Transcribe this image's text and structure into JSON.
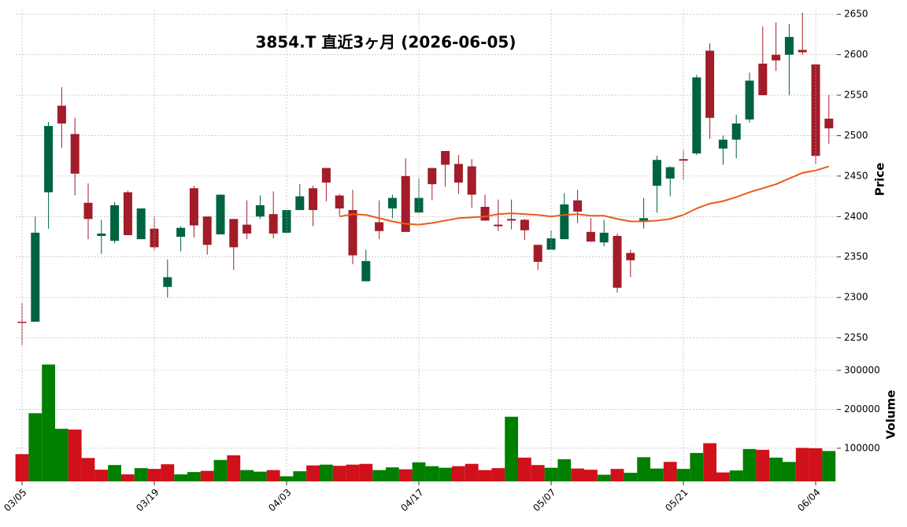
{
  "chart_data": [
    {
      "type": "candlestick",
      "title": "3854.T  直近3ヶ月  (2026-06-05)",
      "ylabel": "Price",
      "categories": [
        "03/05",
        null,
        null,
        null,
        null,
        null,
        null,
        null,
        null,
        null,
        "03/19",
        null,
        null,
        null,
        null,
        null,
        null,
        null,
        null,
        null,
        "04/03",
        null,
        null,
        null,
        null,
        null,
        null,
        null,
        null,
        null,
        "04/17",
        null,
        null,
        null,
        null,
        null,
        null,
        null,
        null,
        null,
        "05/07",
        null,
        null,
        null,
        null,
        null,
        null,
        null,
        null,
        null,
        "05/21",
        null,
        null,
        null,
        null,
        null,
        null,
        null,
        null,
        null,
        "06/04",
        null
      ],
      "open": [
        2270,
        2270,
        2430,
        2537,
        2502,
        2417,
        2376,
        2370,
        2430,
        2372,
        2385,
        2313,
        2375,
        2435,
        2400,
        2378,
        2397,
        2390,
        2400,
        2403,
        2380,
        2408,
        2435,
        2460,
        2426,
        2408,
        2320,
        2393,
        2410,
        2450,
        2405,
        2460,
        2481,
        2465,
        2462,
        2412,
        2390,
        2397,
        2396,
        2365,
        2359,
        2372,
        2420,
        2381,
        2368,
        2376,
        2355,
        2394,
        2438,
        2447,
        2471,
        2478,
        2605,
        2484,
        2495,
        2520,
        2589,
        2600,
        2600,
        2606,
        2588,
        2521
      ],
      "high": [
        2293,
        2400,
        2517,
        2560,
        2522,
        2441,
        2396,
        2418,
        2432,
        2410,
        2400,
        2347,
        2388,
        2438,
        2400,
        2427,
        2397,
        2420,
        2426,
        2431,
        2408,
        2440,
        2438,
        2460,
        2428,
        2433,
        2359,
        2420,
        2427,
        2472,
        2447,
        2460,
        2481,
        2476,
        2471,
        2427,
        2421,
        2421,
        2397,
        2365,
        2383,
        2429,
        2433,
        2398,
        2396,
        2379,
        2359,
        2423,
        2475,
        2462,
        2482,
        2575,
        2614,
        2500,
        2526,
        2578,
        2635,
        2640,
        2638,
        2652,
        2588,
        2550
      ],
      "low": [
        2241,
        2270,
        2385,
        2485,
        2426,
        2372,
        2354,
        2367,
        2377,
        2372,
        2358,
        2300,
        2357,
        2374,
        2353,
        2378,
        2334,
        2372,
        2397,
        2373,
        2380,
        2408,
        2388,
        2419,
        2401,
        2341,
        2320,
        2372,
        2398,
        2381,
        2404,
        2420,
        2437,
        2428,
        2411,
        2395,
        2382,
        2384,
        2371,
        2334,
        2359,
        2372,
        2392,
        2369,
        2363,
        2306,
        2325,
        2385,
        2405,
        2425,
        2446,
        2476,
        2496,
        2464,
        2472,
        2516,
        2550,
        2580,
        2550,
        2600,
        2465,
        2490
      ],
      "close": [
        2270,
        2380,
        2512,
        2515,
        2453,
        2397,
        2379,
        2414,
        2377,
        2410,
        2362,
        2325,
        2386,
        2389,
        2365,
        2427,
        2362,
        2379,
        2414,
        2379,
        2408,
        2425,
        2408,
        2442,
        2410,
        2352,
        2345,
        2382,
        2423,
        2381,
        2423,
        2440,
        2464,
        2442,
        2427,
        2395,
        2388,
        2395,
        2383,
        2344,
        2373,
        2415,
        2406,
        2369,
        2380,
        2312,
        2346,
        2398,
        2470,
        2461,
        2469,
        2572,
        2522,
        2495,
        2515,
        2568,
        2550,
        2593,
        2622,
        2603,
        2475,
        2509
      ],
      "up_color": "#006340",
      "down_color": "#a21c29",
      "ma": {
        "color": "#ea5b1b",
        "values": [
          null,
          null,
          null,
          null,
          null,
          null,
          null,
          null,
          null,
          null,
          null,
          null,
          null,
          null,
          null,
          null,
          null,
          null,
          null,
          null,
          null,
          null,
          null,
          null,
          2400,
          2403,
          2402,
          2398,
          2394,
          2391,
          2390,
          2392,
          2395,
          2398,
          2399,
          2400,
          2403,
          2404,
          2403,
          2402,
          2400,
          2402,
          2403,
          2401,
          2401,
          2397,
          2394,
          2394,
          2395,
          2397,
          2402,
          2410,
          2416,
          2419,
          2424,
          2430,
          2435,
          2440,
          2447,
          2454,
          2457,
          2462
        ]
      },
      "ylim": [
        2235,
        2656
      ],
      "yticks": [
        2250,
        2300,
        2350,
        2400,
        2450,
        2500,
        2550,
        2600,
        2650
      ],
      "grid": true
    },
    {
      "type": "bar",
      "ylabel": "Volume",
      "values": [
        85000,
        190000,
        315000,
        150000,
        148000,
        75000,
        45000,
        57000,
        33000,
        49000,
        47000,
        59000,
        33000,
        39000,
        42000,
        70000,
        82000,
        44000,
        40000,
        44000,
        28000,
        41000,
        56000,
        58000,
        55000,
        58000,
        60000,
        44000,
        51000,
        46000,
        64000,
        54000,
        50000,
        54000,
        60000,
        44000,
        49000,
        181000,
        76000,
        57000,
        50000,
        72000,
        48000,
        45000,
        32000,
        47000,
        37000,
        77000,
        48000,
        65000,
        47000,
        88000,
        113000,
        38000,
        43000,
        98000,
        96000,
        76000,
        65000,
        101000,
        100000,
        93000
      ],
      "up_color": "#007f00",
      "down_color": "#d0101a",
      "ylim": [
        15000,
        326000
      ],
      "yticks": [
        100000,
        200000,
        300000
      ],
      "grid": true
    }
  ]
}
